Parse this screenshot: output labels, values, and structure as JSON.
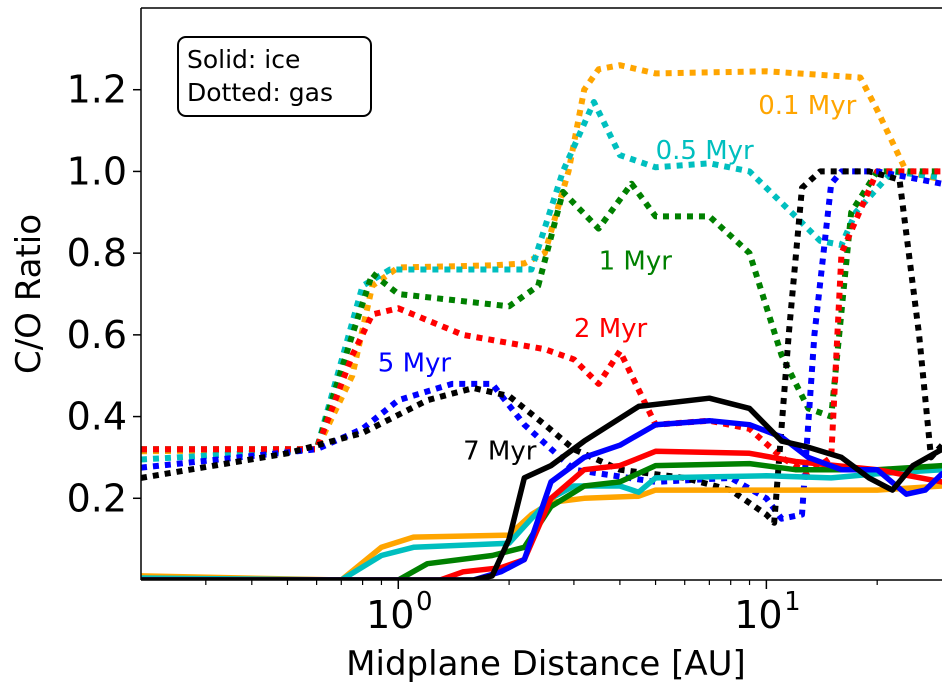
{
  "chart_data": {
    "type": "line",
    "xlabel": "Midplane Distance [AU]",
    "ylabel": "C/O Ratio",
    "xscale": "log",
    "xlim": [
      0.2,
      30
    ],
    "ylim": [
      0.0,
      1.4
    ],
    "x_ticks": [
      {
        "value": 1,
        "base": "10",
        "exp": "0"
      },
      {
        "value": 10,
        "base": "10",
        "exp": "1"
      }
    ],
    "y_ticks": [
      {
        "value": 0.2,
        "label": "0.2"
      },
      {
        "value": 0.4,
        "label": "0.4"
      },
      {
        "value": 0.6,
        "label": "0.6"
      },
      {
        "value": 0.8,
        "label": "0.8"
      },
      {
        "value": 1.0,
        "label": "1.0"
      },
      {
        "value": 1.2,
        "label": "1.2"
      }
    ],
    "legend_box": {
      "lines": [
        "Solid: ice",
        "Dotted: gas"
      ],
      "position": "top-left"
    },
    "series": [
      {
        "name": "0.1 Myr",
        "color": "#ffa500",
        "gas": [
          [
            0.2,
            0.315
          ],
          [
            0.6,
            0.32
          ],
          [
            0.75,
            0.5
          ],
          [
            0.85,
            0.72
          ],
          [
            1.0,
            0.765
          ],
          [
            1.8,
            0.77
          ],
          [
            2.2,
            0.775
          ],
          [
            2.5,
            0.8
          ],
          [
            2.9,
            1.0
          ],
          [
            3.2,
            1.2
          ],
          [
            3.5,
            1.25
          ],
          [
            4.0,
            1.26
          ],
          [
            5.0,
            1.24
          ],
          [
            10.0,
            1.245
          ],
          [
            18.0,
            1.23
          ],
          [
            20.0,
            1.15
          ],
          [
            24.0,
            1.0
          ],
          [
            30.0,
            0.98
          ]
        ],
        "ice": [
          [
            0.2,
            0.01
          ],
          [
            0.7,
            0.0
          ],
          [
            0.9,
            0.08
          ],
          [
            1.1,
            0.105
          ],
          [
            2.0,
            0.11
          ],
          [
            2.3,
            0.16
          ],
          [
            2.6,
            0.19
          ],
          [
            3.2,
            0.2
          ],
          [
            4.5,
            0.205
          ],
          [
            5.0,
            0.22
          ],
          [
            8.0,
            0.22
          ],
          [
            15.0,
            0.22
          ],
          [
            20.0,
            0.22
          ],
          [
            30.0,
            0.23
          ]
        ],
        "label_at": {
          "x": 9.5,
          "y": 1.14
        }
      },
      {
        "name": "0.5 Myr",
        "color": "#00bfbf",
        "gas": [
          [
            0.2,
            0.295
          ],
          [
            0.6,
            0.32
          ],
          [
            0.8,
            0.72
          ],
          [
            0.95,
            0.76
          ],
          [
            2.3,
            0.76
          ],
          [
            2.8,
            1.0
          ],
          [
            3.4,
            1.17
          ],
          [
            4.0,
            1.04
          ],
          [
            5.0,
            1.01
          ],
          [
            7.0,
            1.02
          ],
          [
            9.0,
            1.0
          ],
          [
            12.0,
            0.89
          ],
          [
            14.0,
            0.83
          ],
          [
            16.0,
            0.82
          ],
          [
            17.5,
            0.9
          ],
          [
            22.0,
            1.0
          ],
          [
            30.0,
            0.985
          ]
        ],
        "ice": [
          [
            0.2,
            0.005
          ],
          [
            0.7,
            0.0
          ],
          [
            0.9,
            0.06
          ],
          [
            1.1,
            0.08
          ],
          [
            2.0,
            0.09
          ],
          [
            2.3,
            0.15
          ],
          [
            2.6,
            0.2
          ],
          [
            3.0,
            0.23
          ],
          [
            4.0,
            0.23
          ],
          [
            4.5,
            0.215
          ],
          [
            5.0,
            0.25
          ],
          [
            10.0,
            0.255
          ],
          [
            15.0,
            0.25
          ],
          [
            20.0,
            0.26
          ],
          [
            30.0,
            0.27
          ]
        ],
        "label_at": {
          "x": 5.0,
          "y": 1.03
        }
      },
      {
        "name": "1 Myr",
        "color": "#008000",
        "gas": [
          [
            0.2,
            0.32
          ],
          [
            0.6,
            0.32
          ],
          [
            0.75,
            0.6
          ],
          [
            0.85,
            0.75
          ],
          [
            1.0,
            0.7
          ],
          [
            2.0,
            0.67
          ],
          [
            2.4,
            0.72
          ],
          [
            2.8,
            0.95
          ],
          [
            3.5,
            0.86
          ],
          [
            4.3,
            0.97
          ],
          [
            5.0,
            0.89
          ],
          [
            7.0,
            0.89
          ],
          [
            9.0,
            0.8
          ],
          [
            11.0,
            0.55
          ],
          [
            13.0,
            0.42
          ],
          [
            15.0,
            0.4
          ],
          [
            17.0,
            0.9
          ],
          [
            20.0,
            1.0
          ],
          [
            30.0,
            1.0
          ]
        ],
        "ice": [
          [
            0.2,
            0.0
          ],
          [
            1.0,
            0.0
          ],
          [
            1.2,
            0.04
          ],
          [
            1.8,
            0.06
          ],
          [
            2.2,
            0.08
          ],
          [
            2.6,
            0.18
          ],
          [
            3.2,
            0.23
          ],
          [
            4.0,
            0.24
          ],
          [
            5.0,
            0.28
          ],
          [
            9.0,
            0.285
          ],
          [
            12.0,
            0.27
          ],
          [
            20.0,
            0.27
          ],
          [
            30.0,
            0.28
          ]
        ],
        "label_at": {
          "x": 3.5,
          "y": 0.76
        }
      },
      {
        "name": "2 Myr",
        "color": "#ff0000",
        "gas": [
          [
            0.2,
            0.32
          ],
          [
            0.6,
            0.32
          ],
          [
            0.75,
            0.55
          ],
          [
            0.85,
            0.65
          ],
          [
            1.0,
            0.665
          ],
          [
            1.5,
            0.6
          ],
          [
            2.0,
            0.58
          ],
          [
            2.5,
            0.565
          ],
          [
            3.0,
            0.54
          ],
          [
            3.5,
            0.48
          ],
          [
            4.0,
            0.56
          ],
          [
            5.0,
            0.38
          ],
          [
            7.0,
            0.39
          ],
          [
            9.0,
            0.37
          ],
          [
            11.0,
            0.3
          ],
          [
            13.0,
            0.26
          ],
          [
            15.0,
            0.3
          ],
          [
            16.0,
            0.8
          ],
          [
            20.0,
            1.0
          ],
          [
            30.0,
            1.0
          ]
        ],
        "ice": [
          [
            0.2,
            0.0
          ],
          [
            1.3,
            0.0
          ],
          [
            1.5,
            0.02
          ],
          [
            1.9,
            0.03
          ],
          [
            2.2,
            0.05
          ],
          [
            2.6,
            0.2
          ],
          [
            3.2,
            0.27
          ],
          [
            4.0,
            0.28
          ],
          [
            5.0,
            0.315
          ],
          [
            9.0,
            0.31
          ],
          [
            12.0,
            0.29
          ],
          [
            20.0,
            0.27
          ],
          [
            30.0,
            0.24
          ]
        ],
        "label_at": {
          "x": 3.0,
          "y": 0.595
        }
      },
      {
        "name": "5 Myr",
        "color": "#0000ff",
        "gas": [
          [
            0.2,
            0.275
          ],
          [
            0.6,
            0.32
          ],
          [
            0.8,
            0.37
          ],
          [
            1.0,
            0.44
          ],
          [
            1.4,
            0.48
          ],
          [
            1.8,
            0.48
          ],
          [
            2.2,
            0.38
          ],
          [
            3.0,
            0.27
          ],
          [
            5.0,
            0.24
          ],
          [
            8.0,
            0.25
          ],
          [
            10.0,
            0.2
          ],
          [
            11.0,
            0.15
          ],
          [
            12.5,
            0.16
          ],
          [
            13.5,
            0.6
          ],
          [
            15.0,
            0.97
          ],
          [
            16.0,
            1.0
          ],
          [
            20.0,
            1.0
          ],
          [
            30.0,
            0.97
          ]
        ],
        "ice": [
          [
            0.2,
            0.0
          ],
          [
            1.6,
            0.0
          ],
          [
            1.9,
            0.02
          ],
          [
            2.2,
            0.05
          ],
          [
            2.6,
            0.24
          ],
          [
            3.2,
            0.3
          ],
          [
            4.0,
            0.33
          ],
          [
            5.0,
            0.38
          ],
          [
            7.0,
            0.39
          ],
          [
            9.0,
            0.38
          ],
          [
            11.0,
            0.35
          ],
          [
            13.0,
            0.3
          ],
          [
            16.0,
            0.27
          ],
          [
            20.0,
            0.27
          ],
          [
            24.0,
            0.21
          ],
          [
            27.0,
            0.22
          ],
          [
            30.0,
            0.26
          ]
        ],
        "label_at": {
          "x": 0.88,
          "y": 0.51
        }
      },
      {
        "name": "7 Myr",
        "color": "#000000",
        "gas": [
          [
            0.2,
            0.25
          ],
          [
            0.5,
            0.31
          ],
          [
            0.8,
            0.36
          ],
          [
            1.2,
            0.44
          ],
          [
            1.6,
            0.47
          ],
          [
            2.0,
            0.45
          ],
          [
            2.5,
            0.38
          ],
          [
            3.0,
            0.32
          ],
          [
            4.0,
            0.27
          ],
          [
            6.0,
            0.25
          ],
          [
            8.0,
            0.22
          ],
          [
            10.0,
            0.16
          ],
          [
            10.5,
            0.14
          ],
          [
            11.5,
            0.6
          ],
          [
            12.5,
            0.96
          ],
          [
            14.0,
            1.0
          ],
          [
            19.0,
            1.0
          ],
          [
            23.0,
            0.98
          ],
          [
            26.0,
            0.6
          ],
          [
            28.0,
            0.3
          ],
          [
            30.0,
            0.33
          ]
        ],
        "ice": [
          [
            0.2,
            0.0
          ],
          [
            1.6,
            0.0
          ],
          [
            1.8,
            0.01
          ],
          [
            2.0,
            0.1
          ],
          [
            2.2,
            0.25
          ],
          [
            2.6,
            0.28
          ],
          [
            3.2,
            0.34
          ],
          [
            4.5,
            0.425
          ],
          [
            7.0,
            0.445
          ],
          [
            9.0,
            0.42
          ],
          [
            11.0,
            0.34
          ],
          [
            13.0,
            0.325
          ],
          [
            16.0,
            0.3
          ],
          [
            19.0,
            0.25
          ],
          [
            22.0,
            0.22
          ],
          [
            25.0,
            0.28
          ],
          [
            30.0,
            0.32
          ]
        ],
        "label_at": {
          "x": 1.5,
          "y": 0.295
        }
      }
    ]
  }
}
